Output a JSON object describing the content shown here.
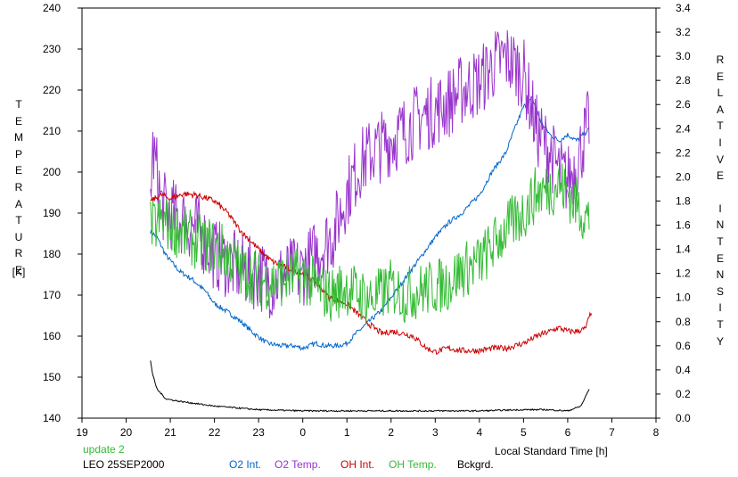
{
  "chart_data": {
    "type": "line",
    "title": "",
    "xlabel": "Local Standard Time [h]",
    "ylabel_left": "TEMPERATURE",
    "ylabel_left_unit": "[K]",
    "ylabel_right": "RELATIVE INTENSITY",
    "x_ticks": [
      "19",
      "20",
      "21",
      "22",
      "23",
      "0",
      "1",
      "2",
      "3",
      "4",
      "5",
      "6",
      "7",
      "8"
    ],
    "y_left_ticks": [
      "140",
      "150",
      "160",
      "170",
      "180",
      "190",
      "200",
      "210",
      "220",
      "230",
      "240"
    ],
    "y_right_ticks": [
      "0.0",
      "0.2",
      "0.4",
      "0.6",
      "0.8",
      "1.0",
      "1.2",
      "1.4",
      "1.6",
      "1.8",
      "2.0",
      "2.2",
      "2.4",
      "2.6",
      "2.8",
      "3.0",
      "3.2",
      "3.4"
    ],
    "xlim": [
      19,
      32
    ],
    "ylim_left": [
      140,
      240
    ],
    "ylim_right": [
      0,
      3.4
    ],
    "grid": false,
    "annotations": {
      "update": "update 2",
      "site_date": "LEO 25SEP2000"
    },
    "series": [
      {
        "name": "O2 Int.",
        "axis": "right",
        "color": "#0066cc",
        "noise": 0.02,
        "x": [
          20.55,
          20.7,
          20.9,
          21.2,
          21.5,
          21.8,
          22.0,
          22.3,
          22.6,
          22.9,
          23.2,
          23.5,
          23.8,
          24.0,
          24.3,
          24.5,
          24.8,
          25.0,
          25.2,
          25.5,
          25.8,
          26.0,
          26.2,
          26.5,
          26.8,
          27.0,
          27.3,
          27.6,
          28.0,
          28.3,
          28.6,
          28.8,
          29.0,
          29.2,
          29.4,
          29.6,
          29.8,
          30.0,
          30.2,
          30.5
        ],
        "y": [
          1.55,
          1.5,
          1.35,
          1.22,
          1.15,
          1.05,
          0.95,
          0.88,
          0.8,
          0.7,
          0.62,
          0.6,
          0.6,
          0.58,
          0.62,
          0.6,
          0.6,
          0.62,
          0.7,
          0.8,
          0.9,
          1.0,
          1.1,
          1.25,
          1.4,
          1.5,
          1.62,
          1.7,
          1.85,
          2.05,
          2.2,
          2.4,
          2.58,
          2.65,
          2.45,
          2.35,
          2.3,
          2.35,
          2.3,
          2.4
        ]
      },
      {
        "name": "O2 Temp.",
        "axis": "left",
        "color": "#9933cc",
        "noise": 9,
        "x": [
          20.55,
          20.6,
          20.7,
          20.8,
          21.0,
          21.3,
          21.6,
          22.0,
          22.3,
          22.6,
          23.0,
          23.3,
          23.6,
          24.0,
          24.3,
          24.7,
          25.0,
          25.3,
          25.6,
          26.0,
          26.3,
          26.6,
          27.0,
          27.3,
          27.6,
          28.0,
          28.3,
          28.6,
          29.0,
          29.3,
          29.6,
          29.8,
          30.0,
          30.2,
          30.5
        ],
        "y": [
          195,
          205,
          200,
          192,
          190,
          188,
          186,
          180,
          178,
          176,
          175,
          173,
          175,
          176,
          180,
          185,
          195,
          202,
          205,
          208,
          210,
          213,
          215,
          217,
          220,
          222,
          226,
          228,
          224,
          210,
          205,
          200,
          198,
          202,
          213
        ]
      },
      {
        "name": "OH Int.",
        "axis": "right",
        "color": "#cc0000",
        "noise": 0.025,
        "x": [
          20.55,
          20.8,
          21.0,
          21.3,
          21.6,
          22.0,
          22.3,
          22.6,
          23.0,
          23.3,
          23.6,
          24.0,
          24.3,
          24.6,
          25.0,
          25.2,
          25.5,
          25.8,
          26.0,
          26.3,
          26.5,
          26.8,
          27.0,
          27.3,
          27.6,
          28.0,
          28.3,
          28.6,
          29.0,
          29.3,
          29.6,
          29.8,
          30.0,
          30.2,
          30.4,
          30.55
        ],
        "y": [
          1.8,
          1.85,
          1.82,
          1.86,
          1.85,
          1.8,
          1.7,
          1.55,
          1.4,
          1.3,
          1.25,
          1.2,
          1.12,
          1.0,
          0.95,
          0.88,
          0.78,
          0.7,
          0.72,
          0.7,
          0.68,
          0.58,
          0.55,
          0.58,
          0.56,
          0.56,
          0.58,
          0.58,
          0.62,
          0.68,
          0.72,
          0.75,
          0.72,
          0.72,
          0.74,
          0.9
        ]
      },
      {
        "name": "OH Temp.",
        "axis": "left",
        "color": "#33bb33",
        "noise": 7,
        "x": [
          20.55,
          20.8,
          21.0,
          21.3,
          21.6,
          22.0,
          22.3,
          22.6,
          23.0,
          23.3,
          23.6,
          24.0,
          24.3,
          24.6,
          25.0,
          25.3,
          25.6,
          26.0,
          26.3,
          26.6,
          27.0,
          27.3,
          27.6,
          28.0,
          28.3,
          28.6,
          29.0,
          29.3,
          29.6,
          29.8,
          30.0,
          30.2,
          30.5
        ],
        "y": [
          186,
          188,
          187,
          185,
          183,
          182,
          180,
          176,
          174,
          173,
          174,
          175,
          172,
          170,
          172,
          170,
          169,
          172,
          170,
          171,
          172,
          173,
          176,
          178,
          182,
          186,
          190,
          195,
          196,
          197,
          195,
          192,
          188
        ]
      },
      {
        "name": "Bckgrd.",
        "axis": "right",
        "color": "#000000",
        "noise": 0.006,
        "x": [
          20.55,
          20.6,
          20.7,
          20.9,
          21.2,
          21.6,
          22.0,
          23.0,
          24.0,
          25.0,
          26.0,
          27.0,
          28.0,
          29.0,
          29.5,
          30.0,
          30.3,
          30.5
        ],
        "y": [
          0.48,
          0.36,
          0.24,
          0.16,
          0.14,
          0.12,
          0.1,
          0.07,
          0.06,
          0.06,
          0.06,
          0.06,
          0.06,
          0.07,
          0.07,
          0.06,
          0.1,
          0.25
        ]
      }
    ]
  }
}
